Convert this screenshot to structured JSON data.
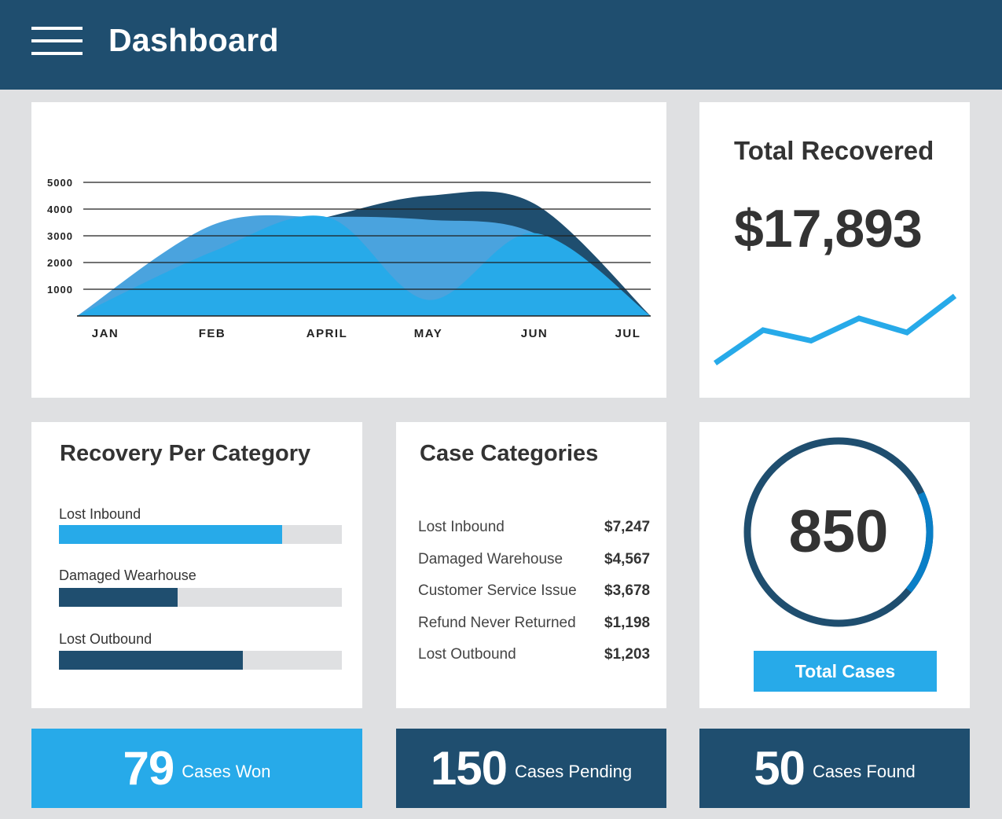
{
  "header": {
    "title": "Dashboard",
    "menu_icon": "hamburger-menu-icon"
  },
  "colors": {
    "header_bg": "#1f4e6f",
    "accent_light": "#27aae9",
    "accent_dark": "#1f4e6f",
    "page_bg": "#dfe0e2"
  },
  "chart_data": {
    "type": "area",
    "title": "",
    "xlabel": "",
    "ylabel": "",
    "ylim": [
      0,
      5000
    ],
    "y_ticks": [
      "5000",
      "4000",
      "3000",
      "2000",
      "1000"
    ],
    "categories": [
      "JAN",
      "FEB",
      "APRIL",
      "MAY",
      "JUN",
      "JUL"
    ],
    "series": [
      {
        "name": "dark",
        "color": "#1f4e6f",
        "values": [
          0,
          2600,
          3700,
          4500,
          4200,
          0
        ]
      },
      {
        "name": "mid",
        "color": "#4aa3de",
        "values": [
          0,
          3400,
          3700,
          3600,
          3100,
          0
        ]
      },
      {
        "name": "light",
        "color": "#27aae9",
        "values": [
          0,
          2400,
          3700,
          600,
          3100,
          0
        ]
      }
    ]
  },
  "total_recovered": {
    "title": "Total Recovered",
    "amount": "$17,893",
    "sparkline": [
      0,
      2.8,
      1.9,
      3.8,
      2.6,
      5.7
    ]
  },
  "recovery_per_category": {
    "title": "Recovery Per Category",
    "items": [
      {
        "label": "Lost Inbound",
        "fraction": 0.79,
        "color": "#27aae9"
      },
      {
        "label": "Damaged Wearhouse",
        "fraction": 0.42,
        "color": "#1f4e6f"
      },
      {
        "label": "Lost Outbound",
        "fraction": 0.65,
        "color": "#1f4e6f"
      }
    ]
  },
  "case_categories": {
    "title": "Case Categories",
    "items": [
      {
        "name": "Lost Inbound",
        "value": "$7,247"
      },
      {
        "name": "Damaged Warehouse",
        "value": "$4,567"
      },
      {
        "name": "Customer Service Issue",
        "value": "$3,678"
      },
      {
        "name": "Refund Never Returned",
        "value": "$1,198"
      },
      {
        "name": "Lost Outbound",
        "value": "$1,203"
      }
    ]
  },
  "total_cases": {
    "value": "850",
    "button_label": "Total Cases",
    "ring_fraction": 0.82
  },
  "stats": {
    "won": {
      "number": "79",
      "label": "Cases Won"
    },
    "pending": {
      "number": "150",
      "label": "Cases Pending"
    },
    "found": {
      "number": "50",
      "label": "Cases Found"
    }
  }
}
